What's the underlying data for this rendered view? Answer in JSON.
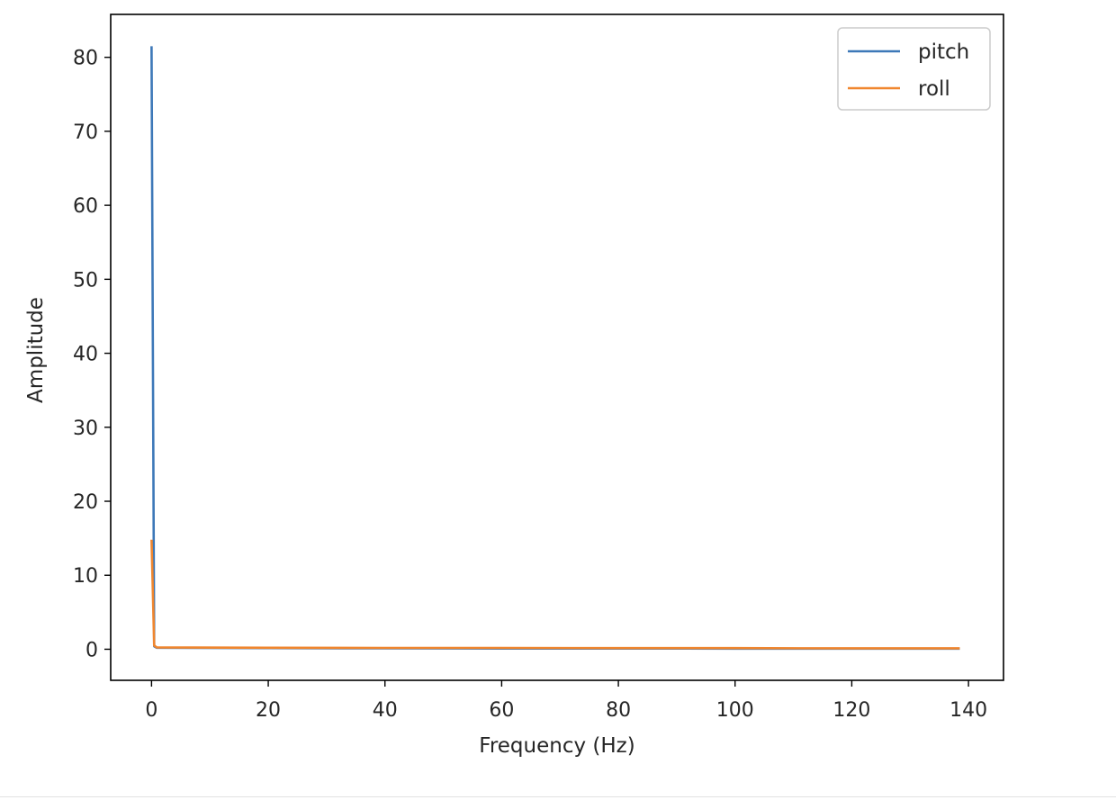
{
  "chart_data": {
    "type": "line",
    "title": "",
    "xlabel": "Frequency (Hz)",
    "ylabel": "Amplitude",
    "xlim": [
      -7,
      146
    ],
    "ylim": [
      -4.2,
      85.8
    ],
    "xticks": [
      0,
      20,
      40,
      60,
      80,
      100,
      120,
      140
    ],
    "yticks": [
      0,
      10,
      20,
      30,
      40,
      50,
      60,
      70,
      80
    ],
    "grid": false,
    "legend": {
      "placement": "top-right"
    },
    "series": [
      {
        "name": "pitch",
        "color": "#3d78b8",
        "x": [
          0,
          0.45,
          0.9,
          20,
          40,
          60,
          80,
          100,
          120,
          138.5
        ],
        "y": [
          81.5,
          0.4,
          0.2,
          0.15,
          0.12,
          0.1,
          0.1,
          0.08,
          0.08,
          0.08
        ]
      },
      {
        "name": "roll",
        "color": "#f0862e",
        "x": [
          0,
          0.45,
          0.9,
          20,
          40,
          60,
          80,
          100,
          120,
          138.5
        ],
        "y": [
          14.8,
          0.5,
          0.25,
          0.2,
          0.18,
          0.18,
          0.15,
          0.15,
          0.12,
          0.12
        ]
      }
    ]
  }
}
